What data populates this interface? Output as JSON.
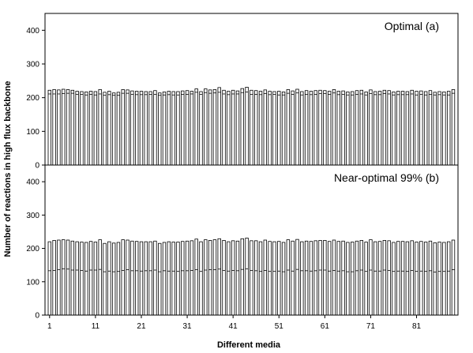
{
  "chart_data": {
    "type": "bar",
    "xlabel": "Different media",
    "ylabel": "Number of reactions in high flux backbone",
    "x_ticks": [
      "1",
      "11",
      "21",
      "31",
      "41",
      "51",
      "61",
      "71",
      "81"
    ],
    "ylim": [
      0,
      450
    ],
    "y_ticks": [
      "0",
      "100",
      "200",
      "300",
      "400"
    ],
    "panels": [
      {
        "title": "Optimal (a)",
        "series": [
          {
            "values": [
              222,
              224,
              223,
              225,
              224,
              222,
              219,
              218,
              217,
              219,
              218,
              224,
              216,
              219,
              214,
              216,
              224,
              223,
              220,
              219,
              219,
              218,
              218,
              221,
              214,
              217,
              219,
              218,
              218,
              220,
              221,
              219,
              226,
              218,
              226,
              223,
              224,
              230,
              222,
              219,
              222,
              220,
              227,
              231,
              222,
              221,
              219,
              223,
              219,
              218,
              219,
              217,
              224,
              220,
              225,
              218,
              221,
              219,
              221,
              222,
              221,
              219,
              224,
              219,
              220,
              217,
              218,
              221,
              222,
              217,
              223,
              218,
              219,
              222,
              221,
              217,
              219,
              219,
              218,
              222,
              219,
              220,
              218,
              221,
              216,
              218,
              217,
              219,
              224
            ]
          },
          {
            "values": [
              211,
              211,
              211,
              212,
              213,
              213,
              210,
              210,
              208,
              210,
              208,
              211,
              207,
              209,
              207,
              207,
              213,
              213,
              210,
              209,
              209,
              209,
              210,
              210,
              207,
              208,
              209,
              208,
              208,
              210,
              210,
              211,
              216,
              210,
              215,
              213,
              214,
              216,
              211,
              209,
              211,
              211,
              215,
              217,
              210,
              210,
              209,
              212,
              209,
              210,
              208,
              208,
              213,
              210,
              214,
              208,
              210,
              209,
              210,
              212,
              212,
              210,
              214,
              209,
              210,
              208,
              208,
              210,
              211,
              208,
              212,
              209,
              209,
              212,
              211,
              208,
              209,
              209,
              209,
              211,
              208,
              210,
              208,
              210,
              208,
              209,
              208,
              208,
              213
            ]
          }
        ]
      },
      {
        "title": "Near-optimal 99% (b)",
        "series": [
          {
            "values": [
              220,
              224,
              225,
              226,
              225,
              222,
              220,
              219,
              218,
              221,
              219,
              226,
              215,
              220,
              216,
              218,
              226,
              225,
              222,
              221,
              220,
              220,
              220,
              222,
              215,
              218,
              220,
              219,
              219,
              221,
              222,
              223,
              228,
              220,
              226,
              224,
              226,
              229,
              224,
              220,
              223,
              222,
              229,
              231,
              223,
              223,
              220,
              225,
              221,
              220,
              221,
              218,
              226,
              222,
              227,
              220,
              222,
              221,
              223,
              224,
              224,
              221,
              225,
              221,
              222,
              218,
              219,
              222,
              224,
              219,
              226,
              220,
              221,
              224,
              223,
              218,
              221,
              221,
              220,
              223,
              219,
              221,
              219,
              222,
              217,
              219,
              218,
              220,
              225
            ]
          },
          {
            "values": [
              133,
              134,
              136,
              139,
              138,
              135,
              135,
              134,
              132,
              135,
              135,
              137,
              130,
              132,
              130,
              131,
              134,
              136,
              133,
              133,
              132,
              133,
              133,
              135,
              130,
              133,
              132,
              132,
              131,
              133,
              133,
              134,
              136,
              131,
              135,
              136,
              136,
              138,
              134,
              132,
              134,
              133,
              137,
              139,
              134,
              133,
              131,
              134,
              131,
              131,
              132,
              130,
              135,
              132,
              137,
              133,
              133,
              132,
              133,
              135,
              135,
              132,
              134,
              132,
              133,
              130,
              130,
              133,
              135,
              131,
              135,
              132,
              132,
              135,
              134,
              131,
              132,
              132,
              131,
              134,
              131,
              132,
              131,
              133,
              129,
              131,
              131,
              132,
              136
            ]
          }
        ]
      }
    ]
  }
}
